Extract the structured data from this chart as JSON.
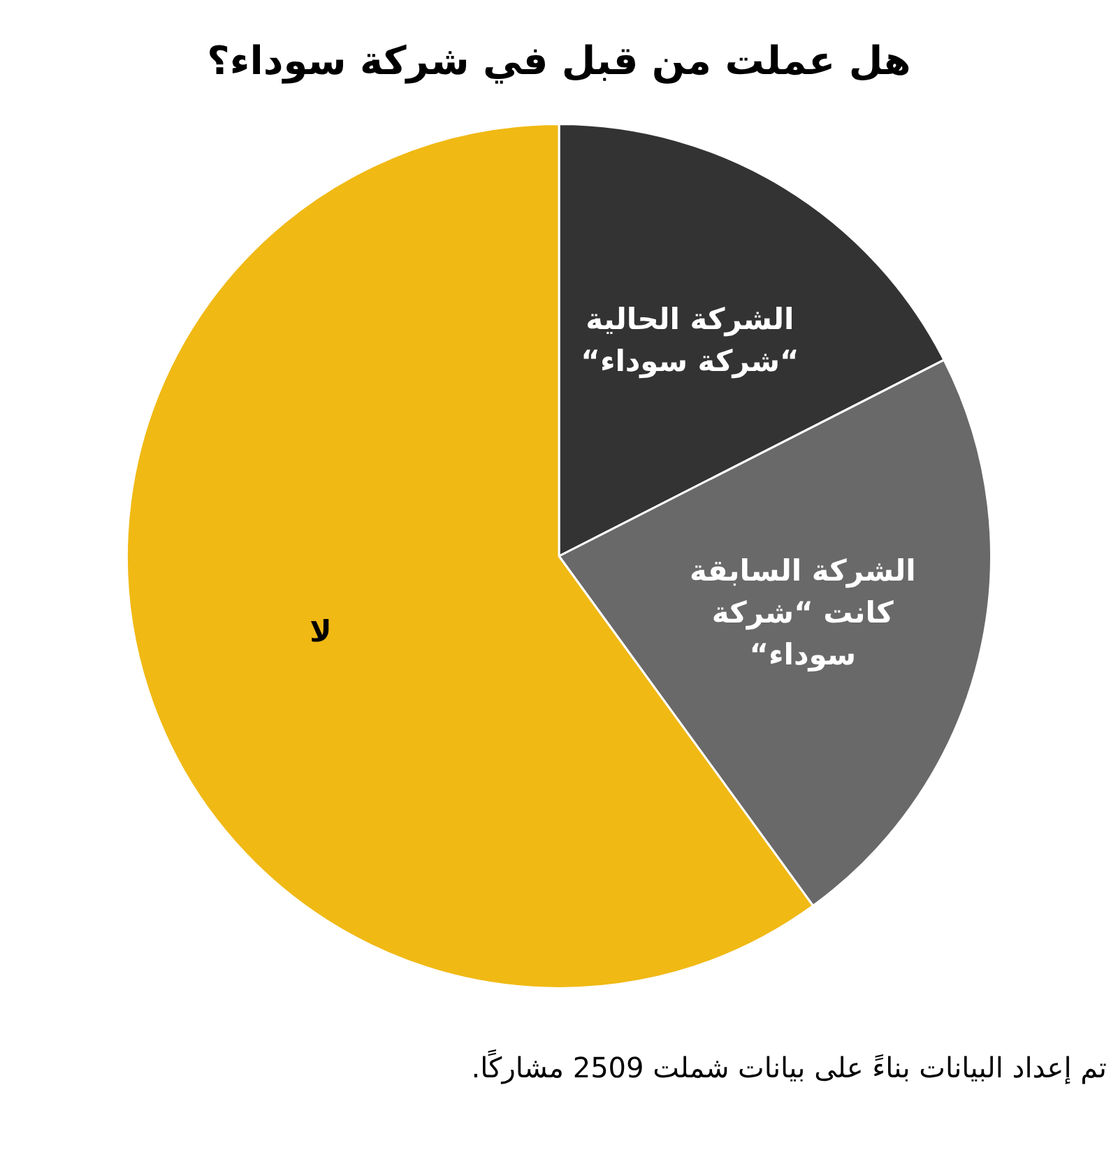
{
  "chart_data": {
    "type": "pie",
    "title": "هل عملت من قبل في شركة سوداء؟",
    "categories": [
      "الشركة الحالية “شركة سوداء“",
      "الشركة السابقة كانت “شركة سوداء“",
      "لا"
    ],
    "values": [
      17.5,
      22.5,
      60
    ],
    "colors": [
      "#333333",
      "#696969",
      "#f0b914"
    ],
    "legend": false,
    "annotations": [
      "تم إعداد البيانات بناءً على بيانات شملت 2509 مشاركًا."
    ]
  }
}
